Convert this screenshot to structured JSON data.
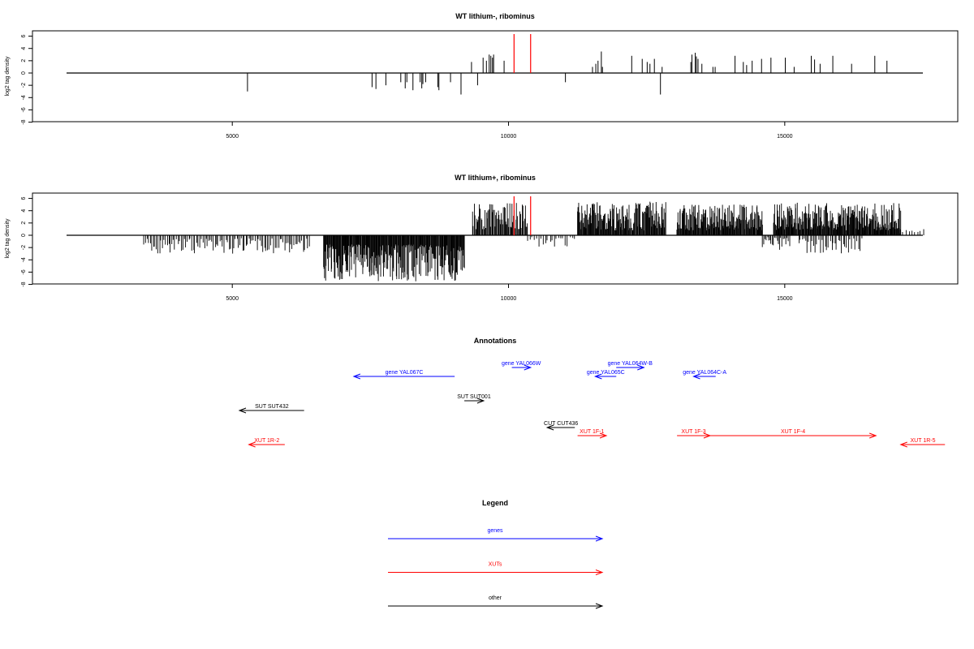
{
  "colors": {
    "axis": "#000000",
    "bar": "#000000",
    "highlight": "#ff0000",
    "gene": "#0000ff",
    "xut": "#ff0000",
    "other": "#000000"
  },
  "chart_data": [
    {
      "type": "bar",
      "title": "WT lithium-, ribominus",
      "ylabel": "log2 tag density",
      "xlim": [
        2000,
        17500
      ],
      "ylim": [
        -8,
        6
      ],
      "xticks": [
        5000,
        10000,
        15000
      ],
      "yticks": [
        6,
        4,
        2,
        0,
        -2,
        -4,
        -6,
        -8
      ],
      "grid": false,
      "highlight_positions": [
        10100,
        10400
      ],
      "bars": [
        [
          5275,
          -3
        ],
        [
          7530,
          -2.3
        ],
        [
          7600,
          -2.6
        ],
        [
          7780,
          -2
        ],
        [
          8050,
          -1.5
        ],
        [
          8130,
          -2.5
        ],
        [
          8160,
          -1.5
        ],
        [
          8270,
          -2.8
        ],
        [
          8400,
          -1.5
        ],
        [
          8430,
          -2.5
        ],
        [
          8450,
          -1.8
        ],
        [
          8500,
          -1.5
        ],
        [
          8720,
          -2.3
        ],
        [
          8740,
          -2.8
        ],
        [
          8950,
          -1.5
        ],
        [
          9140,
          -3.5
        ],
        [
          9330,
          1.8
        ],
        [
          9440,
          -2
        ],
        [
          9540,
          2.5
        ],
        [
          9600,
          2
        ],
        [
          9650,
          3
        ],
        [
          9680,
          2.8
        ],
        [
          9710,
          2.5
        ],
        [
          9730,
          3
        ],
        [
          9920,
          2
        ],
        [
          11030,
          -1.5
        ],
        [
          11520,
          1
        ],
        [
          11580,
          1.5
        ],
        [
          11620,
          2
        ],
        [
          11680,
          3.5
        ],
        [
          11700,
          1
        ],
        [
          12230,
          2.8
        ],
        [
          12420,
          2.3
        ],
        [
          12510,
          1.8
        ],
        [
          12560,
          1.5
        ],
        [
          12640,
          2.3
        ],
        [
          12750,
          -3.5
        ],
        [
          12780,
          1
        ],
        [
          13300,
          1.8
        ],
        [
          13320,
          3
        ],
        [
          13380,
          3.3
        ],
        [
          13400,
          2.7
        ],
        [
          13430,
          2.3
        ],
        [
          13500,
          1.5
        ],
        [
          13700,
          1
        ],
        [
          13740,
          1
        ],
        [
          14100,
          2.8
        ],
        [
          14250,
          1.8
        ],
        [
          14310,
          1.3
        ],
        [
          14410,
          2
        ],
        [
          14580,
          2.3
        ],
        [
          14750,
          2.5
        ],
        [
          15010,
          2.5
        ],
        [
          15170,
          1
        ],
        [
          15480,
          2.8
        ],
        [
          15540,
          2.2
        ],
        [
          15640,
          1.5
        ],
        [
          15870,
          2.8
        ],
        [
          16210,
          1.5
        ],
        [
          16630,
          2.8
        ],
        [
          16850,
          2
        ]
      ]
    },
    {
      "type": "bar",
      "title": "WT lithium+, ribominus",
      "ylabel": "log2 tag density",
      "xlim": [
        2000,
        17500
      ],
      "ylim": [
        -8,
        6
      ],
      "xticks": [
        5000,
        10000,
        15000
      ],
      "yticks": [
        6,
        4,
        2,
        0,
        -2,
        -4,
        -6,
        -8
      ],
      "grid": false,
      "highlight_positions": [
        10100,
        10400
      ],
      "dense_regions": [
        {
          "start": 3400,
          "end": 6400,
          "step": 28,
          "sign": -1,
          "min": 0.5,
          "max": 3.0
        },
        {
          "start": 6650,
          "end": 9200,
          "step": 10,
          "sign": -1,
          "min": 1.5,
          "max": 7.5
        },
        {
          "start": 9350,
          "end": 10350,
          "step": 14,
          "sign": 1,
          "min": 1.0,
          "max": 5.3
        },
        {
          "start": 10350,
          "end": 11200,
          "step": 40,
          "sign": -1,
          "min": 0.3,
          "max": 2.0
        },
        {
          "start": 11250,
          "end": 12850,
          "step": 11,
          "sign": 1,
          "min": 0.8,
          "max": 5.5
        },
        {
          "start": 13050,
          "end": 14600,
          "step": 10,
          "sign": 1,
          "min": 0.8,
          "max": 5.0
        },
        {
          "start": 14600,
          "end": 15100,
          "step": 22,
          "sign": -1,
          "min": 0.3,
          "max": 2.5
        },
        {
          "start": 14800,
          "end": 17100,
          "step": 10,
          "sign": 1,
          "min": 0.8,
          "max": 5.3
        },
        {
          "start": 15250,
          "end": 16400,
          "step": 30,
          "sign": -1,
          "min": 0.5,
          "max": 3.0
        },
        {
          "start": 17100,
          "end": 17500,
          "step": 50,
          "sign": 1,
          "min": 0.3,
          "max": 1.0
        }
      ]
    }
  ],
  "annotations": {
    "title": "Annotations",
    "items": [
      {
        "label": "gene YAL067C",
        "category": "gene",
        "start": 7200,
        "end": 9025,
        "dir": "left",
        "row": 1
      },
      {
        "label": "gene YAL066W",
        "category": "gene",
        "start": 10060,
        "end": 10400,
        "dir": "right",
        "row": 0
      },
      {
        "label": "gene YAL065C",
        "category": "gene",
        "start": 11570,
        "end": 11950,
        "dir": "left",
        "row": 1
      },
      {
        "label": "gene YAL064W-B",
        "category": "gene",
        "start": 11950,
        "end": 12450,
        "dir": "right",
        "row": 0
      },
      {
        "label": "gene YAL064C-A",
        "category": "gene",
        "start": 13350,
        "end": 13750,
        "dir": "left",
        "row": 1
      },
      {
        "label": "SUT SUT432",
        "category": "other",
        "start": 5130,
        "end": 6300,
        "dir": "left",
        "row": 4
      },
      {
        "label": "SUT SUT001",
        "category": "other",
        "start": 9200,
        "end": 9550,
        "dir": "right",
        "row": 3
      },
      {
        "label": "CUT CUT436",
        "category": "other",
        "start": 10700,
        "end": 11200,
        "dir": "left",
        "row": 5
      },
      {
        "label": "XUT 1R-2",
        "category": "xut",
        "start": 5300,
        "end": 5950,
        "dir": "left",
        "row": 7
      },
      {
        "label": "XUT 1F-1",
        "category": "xut",
        "start": 11250,
        "end": 11770,
        "dir": "right",
        "row": 6
      },
      {
        "label": "XUT 1F-3",
        "category": "xut",
        "start": 13050,
        "end": 13650,
        "dir": "right",
        "row": 6
      },
      {
        "label": "XUT 1F-4",
        "category": "xut",
        "start": 13650,
        "end": 16650,
        "dir": "right",
        "row": 6
      },
      {
        "label": "XUT 1R-5",
        "category": "xut",
        "start": 17100,
        "end": 17900,
        "dir": "left",
        "row": 7
      }
    ]
  },
  "legend": {
    "title": "Legend",
    "items": [
      {
        "label": "genes",
        "category": "gene"
      },
      {
        "label": "XUTs",
        "category": "xut"
      },
      {
        "label": "other",
        "category": "other"
      }
    ]
  }
}
